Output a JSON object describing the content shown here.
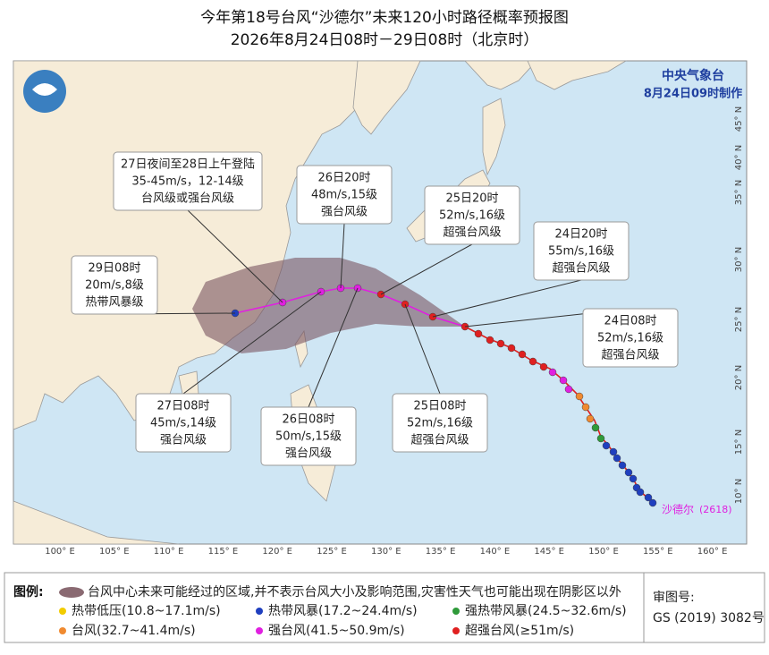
{
  "header": {
    "title": "今年第18号台风“沙德尔”未来120小时路径概率预报图",
    "subtitle": "2026年8月24日08时－29日08时（北京时）"
  },
  "agency": {
    "name": "中央气象台",
    "made": "8月24日09时制作"
  },
  "lon_labels": [
    "100° E",
    "105° E",
    "110° E",
    "115° E",
    "120° E",
    "125° E",
    "130° E",
    "135° E",
    "140° E",
    "145° E",
    "150° E",
    "155° E",
    "160° E"
  ],
  "lat_labels": [
    "10° N",
    "15° N",
    "20° N",
    "25° N",
    "30° N",
    "35° N",
    "40° N",
    "45° N"
  ],
  "typhoon": {
    "name": "沙德尔",
    "code": "(2618)"
  },
  "callouts": [
    {
      "lines": [
        "27日夜间至28日上午登陆",
        "35-45m/s，12-14级",
        "台风级或强台风级"
      ]
    },
    {
      "lines": [
        "26日20时",
        "48m/s,15级",
        "强台风级"
      ]
    },
    {
      "lines": [
        "25日20时",
        "52m/s,16级",
        "超强台风级"
      ]
    },
    {
      "lines": [
        "24日20时",
        "55m/s,16级",
        "超强台风级"
      ]
    },
    {
      "lines": [
        "29日08时",
        "20m/s,8级",
        "热带风暴级"
      ]
    },
    {
      "lines": [
        "24日08时",
        "52m/s,16级",
        "超强台风级"
      ]
    },
    {
      "lines": [
        "27日08时",
        "45m/s,14级",
        "强台风级"
      ]
    },
    {
      "lines": [
        "26日08时",
        "50m/s,15级",
        "强台风级"
      ]
    },
    {
      "lines": [
        "25日08时",
        "52m/s,16级",
        "超强台风级"
      ]
    }
  ],
  "legend": {
    "label": "图例:",
    "cone": "台风中心未来可能经过的区域,并不表示台风大小及影响范围,灾害性天气也可能出现在阴影区以外",
    "items": [
      {
        "name": "热带低压(10.8~17.1m/s)",
        "color": "#f2cc00"
      },
      {
        "name": "热带风暴(17.2~24.4m/s)",
        "color": "#1f3fbf"
      },
      {
        "name": "强热带风暴(24.5~32.6m/s)",
        "color": "#2f9a3a"
      },
      {
        "name": "台风(32.7~41.4m/s)",
        "color": "#f08a30"
      },
      {
        "name": "强台风(41.5~50.9m/s)",
        "color": "#e020e0"
      },
      {
        "name": "超强台风(≥51m/s)",
        "color": "#e02020"
      }
    ]
  },
  "review": {
    "label": "审图号:",
    "number": "GS (2019) 3082号"
  }
}
